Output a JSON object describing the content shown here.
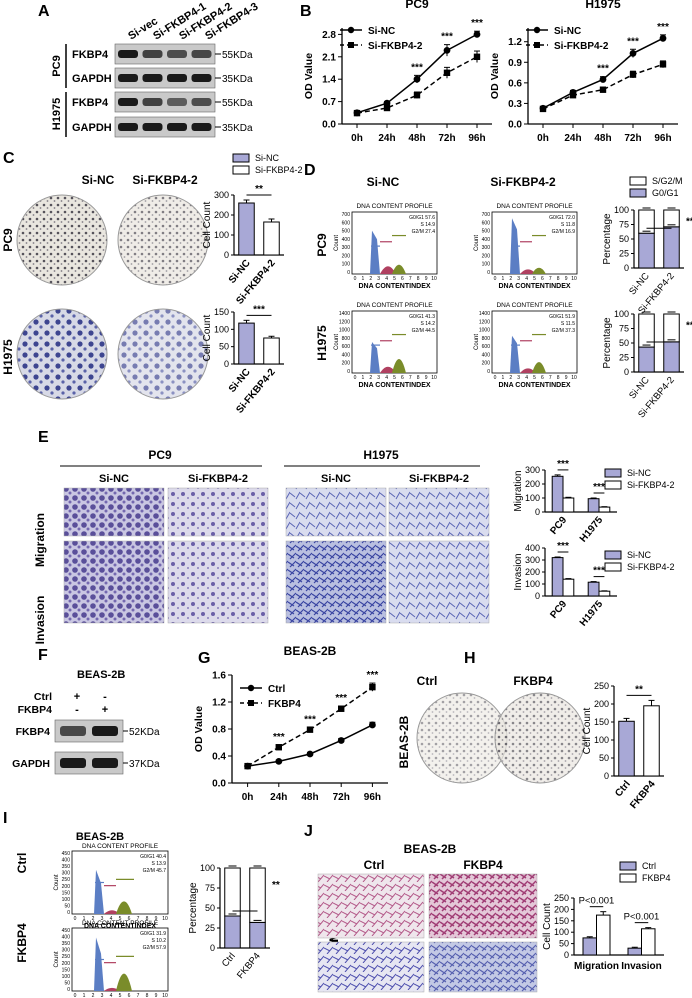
{
  "panels": {
    "A": {
      "letter": "A",
      "lanes": [
        "Si-vec",
        "Si-FKBP4-1",
        "Si-FKBP4-2",
        "Si-FKBP4-3"
      ],
      "cells": [
        "PC9",
        "H1975"
      ],
      "rows": [
        "FKBP4",
        "GAPDH"
      ],
      "markers": [
        "55KDa",
        "35KDa"
      ]
    },
    "B": {
      "letter": "B",
      "charts": [
        {
          "title": "PC9"
        },
        {
          "title": "H1975"
        }
      ]
    },
    "C": {
      "letter": "C",
      "cols": [
        "Si-NC",
        "Si-FKBP4-2"
      ],
      "rows": [
        "PC9",
        "H1975"
      ],
      "legend": [
        "Si-NC",
        "Si-FKBP4-2"
      ]
    },
    "D": {
      "letter": "D",
      "cols": [
        "Si-NC",
        "Si-FKBP4-2"
      ],
      "rows": [
        "PC9",
        "H1975"
      ],
      "legend": [
        "S/G2/M",
        "G0/G1"
      ],
      "profile_title": "DNA CONTENT PROFILE",
      "xlabel": "DNA CONTENTINDEX",
      "ylabel": "Count",
      "ticks_top": [
        "700",
        "600",
        "500",
        "400",
        "300",
        "200",
        "100",
        "0"
      ],
      "ticks_bot": [
        "1400",
        "1200",
        "1000",
        "800",
        "600",
        "400",
        "200",
        "0"
      ],
      "xticks": [
        "0",
        "1",
        "2",
        "3",
        "4",
        "5",
        "6",
        "7",
        "8",
        "9",
        "10"
      ],
      "stats": [
        [
          "G0/G1 57.6",
          "S 14.9",
          "G2/M 27.4"
        ],
        [
          "G0/G1 72.0",
          "S 11.8",
          "G2/M 16.9"
        ],
        [
          "G0/G1 41.3",
          "S 14.2",
          "G2/M 44.5"
        ],
        [
          "G0/G1 51.9",
          "S 11.5",
          "G2/M 37.3"
        ]
      ]
    },
    "E": {
      "letter": "E",
      "groups": [
        "PC9",
        "H1975"
      ],
      "cols": [
        "Si-NC",
        "Si-FKBP4-2",
        "Si-NC",
        "Si-FKBP4-2"
      ],
      "rows": [
        "Migration",
        "Invasion"
      ],
      "legend": [
        "Si-NC",
        "Si-FKBP4-2"
      ]
    },
    "F": {
      "letter": "F",
      "title": "BEAS-2B",
      "cond": [
        "Ctrl",
        "FKBP4"
      ],
      "signs": [
        [
          "+",
          "-"
        ],
        [
          "-",
          "+"
        ]
      ],
      "rows": [
        "FKBP4",
        "GAPDH"
      ],
      "markers": [
        "52KDa",
        "37KDa"
      ]
    },
    "G": {
      "letter": "G",
      "title": "BEAS-2B"
    },
    "H": {
      "letter": "H",
      "cols": [
        "Ctrl",
        "FKBP4"
      ],
      "row": "BEAS-2B"
    },
    "I": {
      "letter": "I",
      "title": "BEAS-2B",
      "rows": [
        "Ctrl",
        "FKBP4"
      ],
      "profile_title": "DNA CONTENT PROFILE",
      "xlabel": "DNA CONTENTINDEX",
      "ylabel": "Count",
      "ticks": [
        "450",
        "400",
        "350",
        "300",
        "250",
        "200",
        "150",
        "100",
        "50",
        "0"
      ],
      "xticks": [
        "0",
        "1",
        "2",
        "3",
        "4",
        "5",
        "6",
        "7",
        "8",
        "9",
        "10"
      ],
      "stats": [
        [
          "G0/G1 40.4",
          "S 13.9",
          "G2/M 45.7"
        ],
        [
          "G0/G1 31.9",
          "S 10.2",
          "G2/M 57.9"
        ]
      ]
    },
    "J": {
      "letter": "J",
      "title": "BEAS-2B",
      "cols": [
        "Ctrl",
        "FKBP4"
      ],
      "rows": [
        "Migration",
        "Invasion"
      ],
      "legend": [
        "Ctrl",
        "FKBP4"
      ]
    }
  },
  "chart_data": [
    {
      "id": "B-PC9",
      "type": "line",
      "title": "PC9",
      "xlabel": "",
      "ylabel": "OD Value",
      "categories": [
        "0h",
        "24h",
        "48h",
        "72h",
        "96h"
      ],
      "ylim": [
        0,
        3.0
      ],
      "yticks": [
        "0.0",
        "0.7",
        "1.4",
        "2.1",
        "2.8"
      ],
      "series": [
        {
          "name": "Si-NC",
          "values": [
            0.35,
            0.65,
            1.4,
            2.3,
            2.8
          ],
          "err": [
            0.03,
            0.05,
            0.12,
            0.18,
            0.1
          ]
        },
        {
          "name": "Si-FKBP4-2",
          "values": [
            0.34,
            0.5,
            0.9,
            1.6,
            2.1
          ],
          "err": [
            0.03,
            0.05,
            0.1,
            0.17,
            0.18
          ]
        }
      ],
      "sig": [
        "",
        "",
        "***",
        "***",
        "***"
      ]
    },
    {
      "id": "B-H1975",
      "type": "line",
      "title": "H1975",
      "xlabel": "",
      "ylabel": "OD Value",
      "categories": [
        "0h",
        "24h",
        "48h",
        "72h",
        "96h"
      ],
      "ylim": [
        0,
        1.4
      ],
      "yticks": [
        "0.0",
        "0.3",
        "0.6",
        "0.9",
        "1.2"
      ],
      "series": [
        {
          "name": "Si-NC",
          "values": [
            0.23,
            0.46,
            0.65,
            1.03,
            1.25
          ],
          "err": [
            0.02,
            0.03,
            0.04,
            0.06,
            0.05
          ]
        },
        {
          "name": "Si-FKBP4-2",
          "values": [
            0.22,
            0.42,
            0.5,
            0.72,
            0.87
          ],
          "err": [
            0.02,
            0.02,
            0.03,
            0.05,
            0.05
          ]
        }
      ],
      "sig": [
        "",
        "",
        "***",
        "***",
        "***"
      ]
    },
    {
      "id": "C-PC9",
      "type": "bar",
      "ylabel": "Cell Count",
      "categories": [
        "Si-NC",
        "Si-FKBP4-2"
      ],
      "ylim": [
        0,
        300
      ],
      "yticks": [
        "0",
        "100",
        "200",
        "300"
      ],
      "values": [
        260,
        165
      ],
      "err": [
        15,
        15
      ],
      "sig": "**"
    },
    {
      "id": "C-H1975",
      "type": "bar",
      "ylabel": "Cell Count",
      "categories": [
        "Si-NC",
        "Si-FKBP4-2"
      ],
      "ylim": [
        0,
        150
      ],
      "yticks": [
        "0",
        "50",
        "100",
        "150"
      ],
      "values": [
        118,
        75
      ],
      "err": [
        8,
        5
      ],
      "sig": "***"
    },
    {
      "id": "D-PC9",
      "type": "bar",
      "ylabel": "Percentage",
      "categories": [
        "Si-NC",
        "Si-FKBP4-2"
      ],
      "ylim": [
        0,
        100
      ],
      "yticks": [
        "0",
        "25",
        "50",
        "75",
        "100"
      ],
      "series": [
        {
          "name": "G0/G1",
          "values": [
            60,
            71
          ]
        },
        {
          "name": "S/G2/M",
          "values": [
            40,
            29
          ]
        }
      ],
      "sig": "***"
    },
    {
      "id": "D-H1975",
      "type": "bar",
      "ylabel": "Percentage",
      "categories": [
        "Si-NC",
        "Si-FKBP4-2"
      ],
      "ylim": [
        0,
        100
      ],
      "yticks": [
        "0",
        "25",
        "50",
        "75",
        "100"
      ],
      "series": [
        {
          "name": "G0/G1",
          "values": [
            43,
            52
          ]
        },
        {
          "name": "S/G2/M",
          "values": [
            57,
            48
          ]
        }
      ],
      "sig": "**"
    },
    {
      "id": "E-Migration",
      "type": "bar",
      "ylabel": "Migration",
      "categories": [
        "PC9",
        "H1975"
      ],
      "ylim": [
        0,
        300
      ],
      "yticks": [
        "0",
        "100",
        "200",
        "300"
      ],
      "series": [
        {
          "name": "Si-NC",
          "values": [
            255,
            95
          ],
          "err": [
            10,
            5
          ]
        },
        {
          "name": "Si-FKBP4-2",
          "values": [
            100,
            35
          ],
          "err": [
            5,
            3
          ]
        }
      ],
      "sig": [
        "***",
        "***"
      ]
    },
    {
      "id": "E-Invasion",
      "type": "bar",
      "ylabel": "Invasion",
      "categories": [
        "PC9",
        "H1975"
      ],
      "ylim": [
        0,
        400
      ],
      "yticks": [
        "0",
        "100",
        "200",
        "300",
        "400"
      ],
      "series": [
        {
          "name": "Si-NC",
          "values": [
            320,
            115
          ],
          "err": [
            5,
            5
          ]
        },
        {
          "name": "Si-FKBP4-2",
          "values": [
            140,
            40
          ],
          "err": [
            5,
            3
          ]
        }
      ],
      "sig": [
        "***",
        "***"
      ]
    },
    {
      "id": "G-BEAS2B",
      "type": "line",
      "title": "BEAS-2B",
      "ylabel": "OD Value",
      "categories": [
        "0h",
        "24h",
        "48h",
        "72h",
        "96h"
      ],
      "ylim": [
        0,
        1.6
      ],
      "yticks": [
        "0.0",
        "0.4",
        "0.8",
        "1.2",
        "1.6"
      ],
      "series": [
        {
          "name": "Ctrl",
          "values": [
            0.25,
            0.32,
            0.43,
            0.63,
            0.86
          ],
          "err": [
            0.02,
            0.02,
            0.02,
            0.03,
            0.04
          ]
        },
        {
          "name": "FKBP4",
          "values": [
            0.25,
            0.53,
            0.79,
            1.1,
            1.42
          ],
          "err": [
            0.02,
            0.03,
            0.03,
            0.04,
            0.06
          ]
        }
      ],
      "sig": [
        "",
        "***",
        "***",
        "***",
        "***"
      ]
    },
    {
      "id": "H-BEAS2B",
      "type": "bar",
      "ylabel": "Cell Count",
      "categories": [
        "Ctrl",
        "FKBP4"
      ],
      "ylim": [
        0,
        250
      ],
      "yticks": [
        "0",
        "50",
        "100",
        "150",
        "200",
        "250"
      ],
      "values": [
        152,
        195
      ],
      "err": [
        8,
        15
      ],
      "sig": "**"
    },
    {
      "id": "I-BEAS2B",
      "type": "bar",
      "ylabel": "Percentage",
      "categories": [
        "Ctrl",
        "FKBP4"
      ],
      "ylim": [
        0,
        100
      ],
      "yticks": [
        "0",
        "25",
        "50",
        "75",
        "100"
      ],
      "series": [
        {
          "name": "G0/G1",
          "values": [
            40,
            32
          ]
        },
        {
          "name": "S/G2/M",
          "values": [
            60,
            68
          ]
        }
      ],
      "sig": "**"
    },
    {
      "id": "J-BEAS2B",
      "type": "bar",
      "ylabel": "Cell Count",
      "categories": [
        "Migration",
        "Invasion"
      ],
      "ylim": [
        0,
        250
      ],
      "yticks": [
        "0",
        "50",
        "100",
        "150",
        "200",
        "250"
      ],
      "series": [
        {
          "name": "Ctrl",
          "values": [
            75,
            30
          ],
          "err": [
            5,
            4
          ]
        },
        {
          "name": "FKBP4",
          "values": [
            175,
            115
          ],
          "err": [
            15,
            5
          ]
        }
      ],
      "sig": [
        "P<0.001",
        "P<0.001"
      ]
    }
  ]
}
